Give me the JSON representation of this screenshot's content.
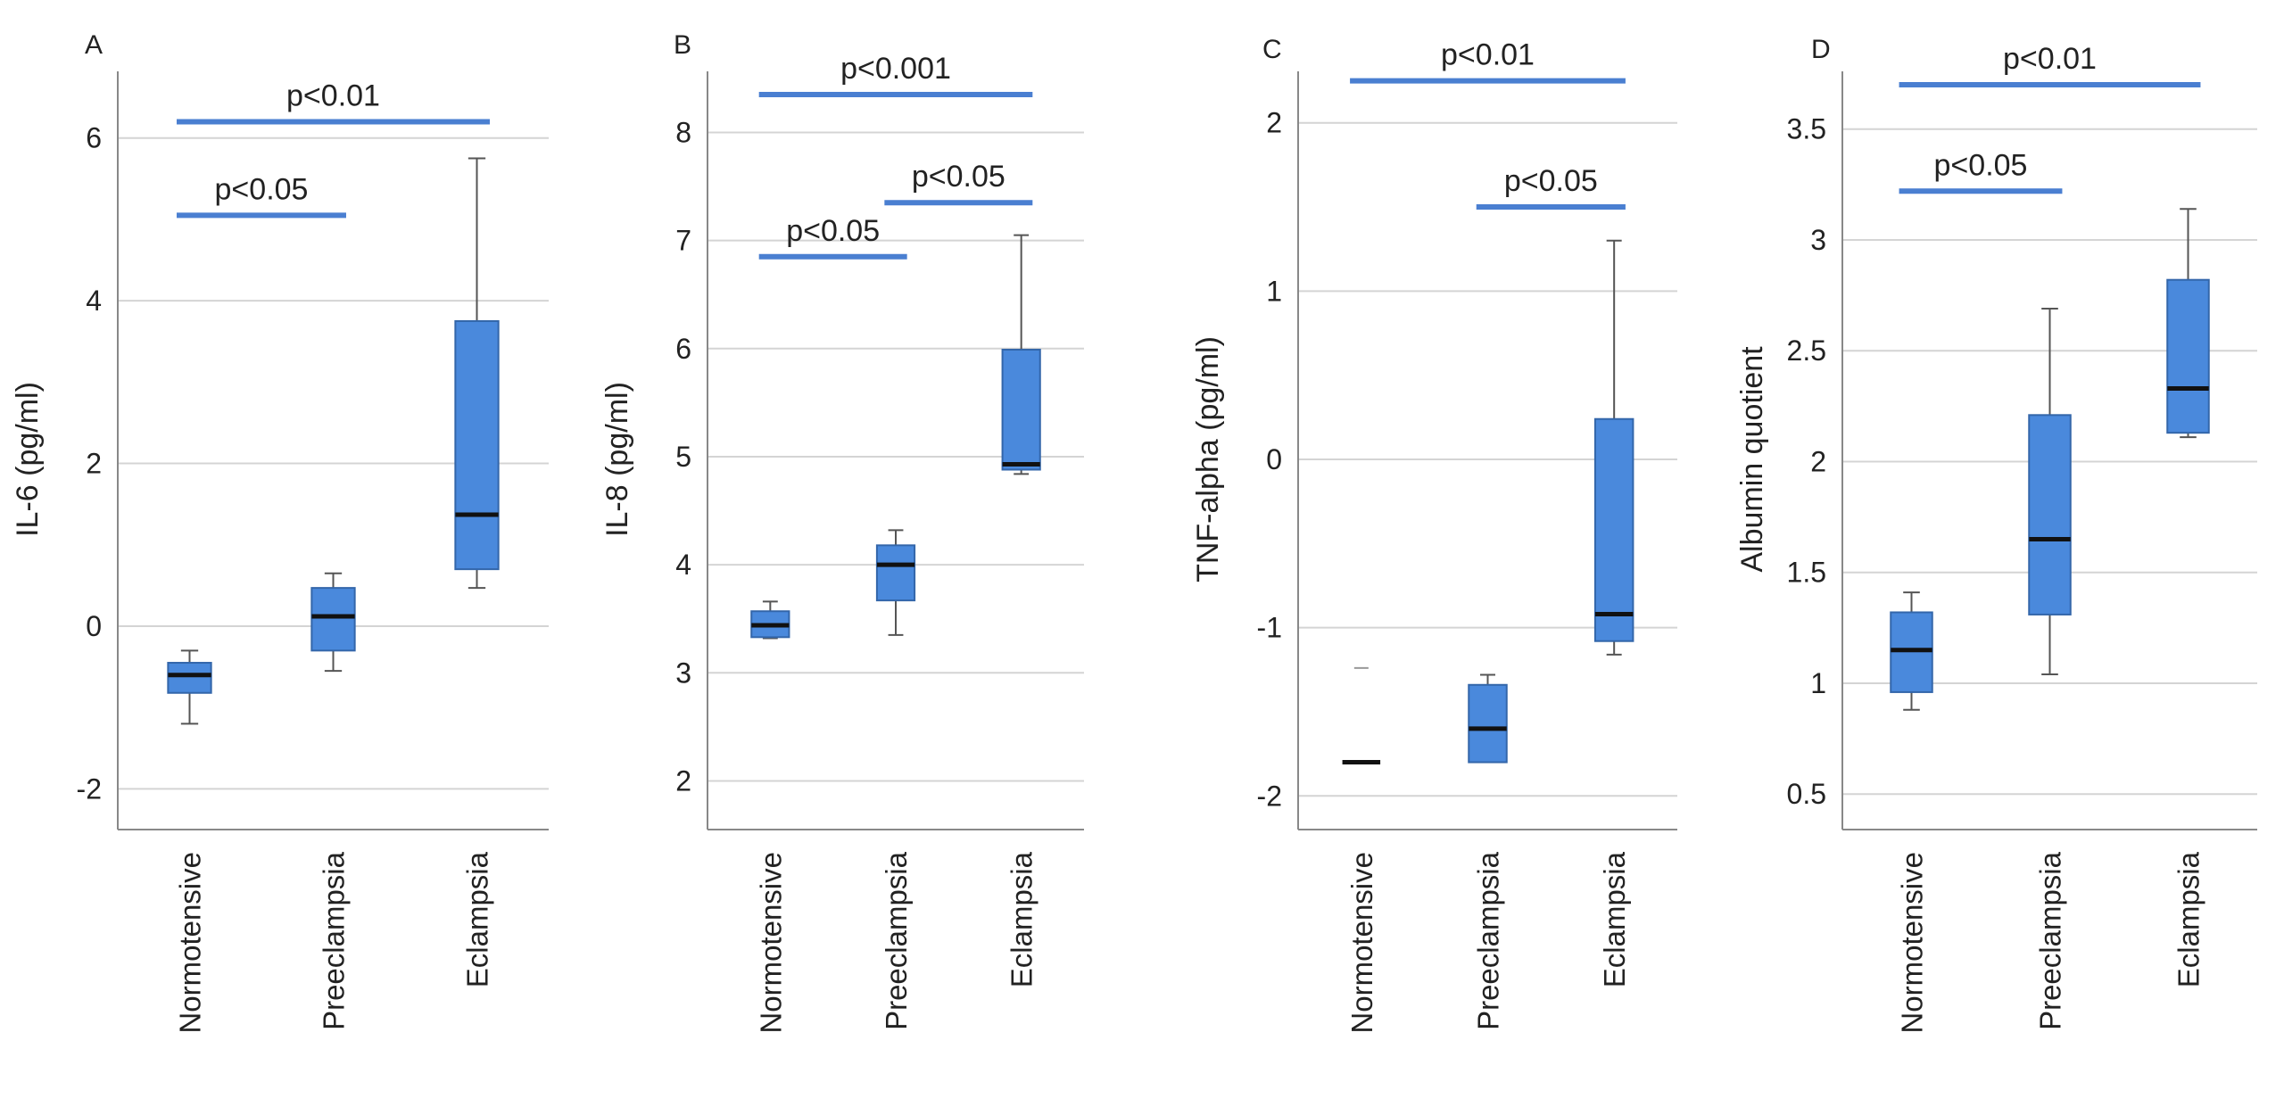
{
  "chart_data": [
    {
      "type": "box",
      "panel_label": "A",
      "ylabel": "IL-6 (pg/ml)",
      "categories": [
        "Normotensive",
        "Preeclampsia",
        "Eclampsia"
      ],
      "ylim": [
        -2.5,
        6.6
      ],
      "yticks": [
        -2,
        0,
        2,
        4,
        6
      ],
      "ytick_labels": [
        "-2",
        "0",
        "2",
        "4",
        "6"
      ],
      "grid": true,
      "boxes": [
        {
          "min": -1.2,
          "q1": -0.82,
          "median": -0.6,
          "q3": -0.45,
          "max": -0.3
        },
        {
          "min": -0.55,
          "q1": -0.3,
          "median": 0.12,
          "q3": 0.47,
          "max": 0.65
        },
        {
          "min": 0.47,
          "q1": 0.7,
          "median": 1.37,
          "q3": 3.75,
          "max": 5.75
        }
      ],
      "significance": [
        {
          "label": "p<0.01",
          "from": 0,
          "to": 2,
          "level": 6.2
        },
        {
          "label": "p<0.05",
          "from": 0,
          "to": 1,
          "level": 5.05
        }
      ]
    },
    {
      "type": "box",
      "panel_label": "B",
      "ylabel": "IL-8 (pg/ml)",
      "categories": [
        "Normotensive",
        "Preeclampsia",
        "Eclampsia"
      ],
      "ylim": [
        1.55,
        8.4
      ],
      "yticks": [
        2,
        3,
        4,
        5,
        6,
        7,
        8
      ],
      "ytick_labels": [
        "2",
        "3",
        "4",
        "5",
        "6",
        "7",
        "8"
      ],
      "grid": true,
      "boxes": [
        {
          "min": 3.32,
          "q1": 3.33,
          "median": 3.44,
          "q3": 3.57,
          "max": 3.66
        },
        {
          "min": 3.35,
          "q1": 3.67,
          "median": 4.0,
          "q3": 4.18,
          "max": 4.32
        },
        {
          "min": 4.84,
          "q1": 4.88,
          "median": 4.93,
          "q3": 5.99,
          "max": 7.05
        }
      ],
      "significance": [
        {
          "label": "p<0.001",
          "from": 0,
          "to": 2,
          "level": 8.35
        },
        {
          "label": "p<0.05",
          "from": 1,
          "to": 2,
          "level": 7.35
        },
        {
          "label": "p<0.05",
          "from": 0,
          "to": 1,
          "level": 6.85
        }
      ]
    },
    {
      "type": "box",
      "panel_label": "C",
      "ylabel": "TNF-alpha (pg/ml)",
      "categories": [
        "Normotensive",
        "Preeclampsia",
        "Eclampsia"
      ],
      "ylim": [
        -2.2,
        2.2
      ],
      "yticks": [
        -2,
        -1,
        0,
        1,
        2
      ],
      "ytick_labels": [
        "-2",
        "-1",
        "0",
        "1",
        "2"
      ],
      "grid": true,
      "boxes": [
        {
          "min": -1.8,
          "q1": -1.8,
          "median": -1.8,
          "q3": -1.8,
          "max": -1.8,
          "outliers": [
            -1.24
          ]
        },
        {
          "min": -1.8,
          "q1": -1.8,
          "median": -1.6,
          "q3": -1.34,
          "max": -1.28
        },
        {
          "min": -1.16,
          "q1": -1.08,
          "median": -0.92,
          "q3": 0.24,
          "max": 1.3
        }
      ],
      "significance": [
        {
          "label": "p<0.01",
          "from": 0,
          "to": 2,
          "level": 2.25
        },
        {
          "label": "p<0.05",
          "from": 1,
          "to": 2,
          "level": 1.5
        }
      ]
    },
    {
      "type": "box",
      "panel_label": "D",
      "ylabel": "Albumin quotient",
      "categories": [
        "Normotensive",
        "Preeclampsia",
        "Eclampsia"
      ],
      "ylim": [
        0.34,
        3.68
      ],
      "yticks": [
        0.5,
        1,
        1.5,
        2,
        2.5,
        3,
        3.5
      ],
      "ytick_labels": [
        "0.5",
        "1",
        "1.5",
        "2",
        "2.5",
        "3",
        "3.5"
      ],
      "grid": true,
      "boxes": [
        {
          "min": 0.88,
          "q1": 0.96,
          "median": 1.15,
          "q3": 1.32,
          "max": 1.41
        },
        {
          "min": 1.04,
          "q1": 1.31,
          "median": 1.65,
          "q3": 2.21,
          "max": 2.69
        },
        {
          "min": 2.11,
          "q1": 2.13,
          "median": 2.33,
          "q3": 2.82,
          "max": 3.14
        }
      ],
      "significance": [
        {
          "label": "p<0.01",
          "from": 0,
          "to": 2,
          "level": 3.7
        },
        {
          "label": "p<0.05",
          "from": 0,
          "to": 1,
          "level": 3.22
        }
      ]
    }
  ],
  "colors": {
    "box_fill": "#4a89dc",
    "box_edge": "#3366aa",
    "median": "#111111",
    "bracket": "#4a7fd1",
    "grid": "#d4d4d4",
    "axis": "#888888",
    "text": "#222222"
  }
}
